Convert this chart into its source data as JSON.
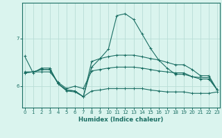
{
  "title": "",
  "xlabel": "Humidex (Indice chaleur)",
  "bg_color": "#daf4ee",
  "grid_color": "#b8ddd6",
  "line_color": "#1a6e63",
  "x_ticks": [
    0,
    1,
    2,
    3,
    4,
    5,
    6,
    7,
    8,
    9,
    10,
    11,
    12,
    13,
    14,
    15,
    16,
    17,
    18,
    19,
    20,
    21,
    22,
    23
  ],
  "y_ticks": [
    6,
    7
  ],
  "ylim": [
    5.55,
    7.75
  ],
  "xlim": [
    -0.3,
    23.3
  ],
  "series": [
    [
      6.63,
      6.28,
      6.38,
      6.38,
      6.05,
      5.9,
      5.88,
      5.78,
      6.4,
      6.58,
      6.78,
      7.48,
      7.52,
      7.4,
      7.1,
      6.8,
      6.55,
      6.38,
      6.25,
      6.25,
      6.2,
      6.18,
      6.18,
      5.92
    ],
    [
      6.3,
      6.3,
      6.3,
      6.3,
      6.08,
      5.95,
      6.0,
      5.95,
      6.32,
      6.35,
      6.38,
      6.4,
      6.4,
      6.4,
      6.38,
      6.35,
      6.32,
      6.3,
      6.28,
      6.28,
      6.2,
      6.15,
      6.15,
      5.92
    ],
    [
      6.28,
      6.3,
      6.35,
      6.35,
      6.05,
      5.92,
      5.9,
      5.78,
      5.9,
      5.92,
      5.95,
      5.95,
      5.95,
      5.95,
      5.95,
      5.92,
      5.9,
      5.88,
      5.88,
      5.88,
      5.85,
      5.85,
      5.85,
      5.88
    ],
    [
      6.28,
      6.3,
      6.35,
      6.35,
      6.05,
      5.92,
      5.9,
      5.78,
      6.52,
      6.58,
      6.62,
      6.65,
      6.65,
      6.65,
      6.62,
      6.58,
      6.55,
      6.5,
      6.45,
      6.45,
      6.35,
      6.22,
      6.22,
      5.92
    ]
  ]
}
